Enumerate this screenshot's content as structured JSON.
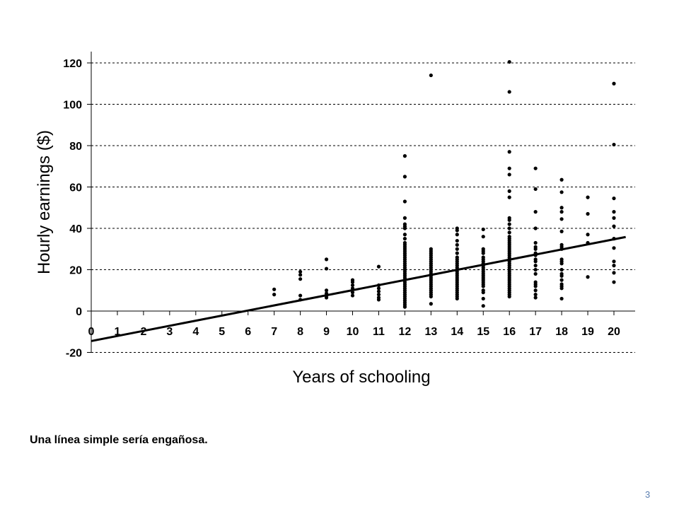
{
  "caption": "Una línea simple sería engañosa.",
  "page_number": "3",
  "chart_data": {
    "type": "scatter",
    "title": "",
    "xlabel": "Years of schooling",
    "ylabel": "Hourly earnings ($)",
    "xlim": [
      0,
      20.5
    ],
    "ylim": [
      -20,
      120
    ],
    "x_ticks": [
      0,
      1,
      2,
      3,
      4,
      5,
      6,
      7,
      8,
      9,
      10,
      11,
      12,
      13,
      14,
      15,
      16,
      17,
      18,
      19,
      20
    ],
    "y_ticks": [
      -20,
      0,
      20,
      40,
      60,
      80,
      100,
      120
    ],
    "grid": "horizontal-dashed",
    "legend": "none",
    "point_color": "#000000",
    "series": [
      {
        "points": [
          [
            7,
            8
          ],
          [
            7,
            10.5
          ],
          [
            8,
            5.5
          ],
          [
            8,
            7.5
          ],
          [
            8,
            15.5
          ],
          [
            8,
            17.5
          ],
          [
            8,
            19
          ],
          [
            9,
            6.5
          ],
          [
            9,
            7.5
          ],
          [
            9,
            8.5
          ],
          [
            9,
            10
          ],
          [
            9,
            20.5
          ],
          [
            9,
            25
          ],
          [
            10,
            7.5
          ],
          [
            10,
            9
          ],
          [
            10,
            11
          ],
          [
            10,
            12.5
          ],
          [
            10,
            14
          ],
          [
            10,
            15
          ],
          [
            11,
            5.5
          ],
          [
            11,
            6.5
          ],
          [
            11,
            8
          ],
          [
            11,
            9.5
          ],
          [
            11,
            11
          ],
          [
            11,
            12.5
          ],
          [
            11,
            21.5
          ],
          [
            12,
            2
          ],
          [
            12,
            3
          ],
          [
            12,
            4
          ],
          [
            12,
            5
          ],
          [
            12,
            6
          ],
          [
            12,
            7
          ],
          [
            12,
            8
          ],
          [
            12,
            9
          ],
          [
            12,
            10
          ],
          [
            12,
            11
          ],
          [
            12,
            12
          ],
          [
            12,
            13
          ],
          [
            12,
            14
          ],
          [
            12,
            15
          ],
          [
            12,
            16
          ],
          [
            12,
            17
          ],
          [
            12,
            18
          ],
          [
            12,
            19
          ],
          [
            12,
            20
          ],
          [
            12,
            21
          ],
          [
            12,
            22
          ],
          [
            12,
            23
          ],
          [
            12,
            24
          ],
          [
            12,
            25
          ],
          [
            12,
            26
          ],
          [
            12,
            27
          ],
          [
            12,
            28
          ],
          [
            12,
            29
          ],
          [
            12,
            30
          ],
          [
            12,
            31
          ],
          [
            12,
            32
          ],
          [
            12,
            33
          ],
          [
            12,
            35
          ],
          [
            12,
            37
          ],
          [
            12,
            40
          ],
          [
            12,
            41
          ],
          [
            12,
            42
          ],
          [
            12,
            45
          ],
          [
            12,
            53
          ],
          [
            12,
            65
          ],
          [
            12,
            75
          ],
          [
            13,
            3.5
          ],
          [
            13,
            7
          ],
          [
            13,
            8
          ],
          [
            13,
            9
          ],
          [
            13,
            10
          ],
          [
            13,
            11
          ],
          [
            13,
            12
          ],
          [
            13,
            13
          ],
          [
            13,
            14
          ],
          [
            13,
            15
          ],
          [
            13,
            16
          ],
          [
            13,
            17
          ],
          [
            13,
            18
          ],
          [
            13,
            19
          ],
          [
            13,
            20
          ],
          [
            13,
            21
          ],
          [
            13,
            22
          ],
          [
            13,
            23
          ],
          [
            13,
            24
          ],
          [
            13,
            25
          ],
          [
            13,
            26
          ],
          [
            13,
            27
          ],
          [
            13,
            28
          ],
          [
            13,
            29
          ],
          [
            13,
            30
          ],
          [
            13,
            114
          ],
          [
            14,
            6
          ],
          [
            14,
            7
          ],
          [
            14,
            8
          ],
          [
            14,
            9
          ],
          [
            14,
            10
          ],
          [
            14,
            11
          ],
          [
            14,
            12
          ],
          [
            14,
            13
          ],
          [
            14,
            14
          ],
          [
            14,
            15
          ],
          [
            14,
            16
          ],
          [
            14,
            17
          ],
          [
            14,
            18
          ],
          [
            14,
            19
          ],
          [
            14,
            20
          ],
          [
            14,
            21
          ],
          [
            14,
            22
          ],
          [
            14,
            23
          ],
          [
            14,
            24
          ],
          [
            14,
            25
          ],
          [
            14,
            26
          ],
          [
            14,
            28
          ],
          [
            14,
            30
          ],
          [
            14,
            32
          ],
          [
            14,
            34
          ],
          [
            14,
            37
          ],
          [
            14,
            39
          ],
          [
            14,
            40
          ],
          [
            15,
            2.5
          ],
          [
            15,
            6
          ],
          [
            15,
            9
          ],
          [
            15,
            10
          ],
          [
            15,
            12
          ],
          [
            15,
            13
          ],
          [
            15,
            14
          ],
          [
            15,
            15
          ],
          [
            15,
            16
          ],
          [
            15,
            17
          ],
          [
            15,
            18
          ],
          [
            15,
            19
          ],
          [
            15,
            20
          ],
          [
            15,
            21
          ],
          [
            15,
            22
          ],
          [
            15,
            23
          ],
          [
            15,
            24
          ],
          [
            15,
            25
          ],
          [
            15,
            26
          ],
          [
            15,
            28
          ],
          [
            15,
            29
          ],
          [
            15,
            30
          ],
          [
            15,
            36
          ],
          [
            15,
            39.5
          ],
          [
            16,
            7
          ],
          [
            16,
            8
          ],
          [
            16,
            9
          ],
          [
            16,
            10
          ],
          [
            16,
            11
          ],
          [
            16,
            12
          ],
          [
            16,
            13
          ],
          [
            16,
            14
          ],
          [
            16,
            15
          ],
          [
            16,
            16
          ],
          [
            16,
            17
          ],
          [
            16,
            18
          ],
          [
            16,
            19
          ],
          [
            16,
            20
          ],
          [
            16,
            21
          ],
          [
            16,
            22
          ],
          [
            16,
            23
          ],
          [
            16,
            24
          ],
          [
            16,
            25
          ],
          [
            16,
            26
          ],
          [
            16,
            27
          ],
          [
            16,
            28
          ],
          [
            16,
            29
          ],
          [
            16,
            30
          ],
          [
            16,
            31
          ],
          [
            16,
            32
          ],
          [
            16,
            33
          ],
          [
            16,
            34
          ],
          [
            16,
            35
          ],
          [
            16,
            36
          ],
          [
            16,
            38
          ],
          [
            16,
            40
          ],
          [
            16,
            42
          ],
          [
            16,
            44
          ],
          [
            16,
            45
          ],
          [
            16,
            55
          ],
          [
            16,
            58
          ],
          [
            16,
            66
          ],
          [
            16,
            69
          ],
          [
            16,
            77
          ],
          [
            16,
            106
          ],
          [
            16,
            120.5
          ],
          [
            17,
            6.5
          ],
          [
            17,
            8
          ],
          [
            17,
            10
          ],
          [
            17,
            12
          ],
          [
            17,
            13
          ],
          [
            17,
            14
          ],
          [
            17,
            18
          ],
          [
            17,
            20
          ],
          [
            17,
            22
          ],
          [
            17,
            24
          ],
          [
            17,
            25
          ],
          [
            17,
            27
          ],
          [
            17,
            28
          ],
          [
            17,
            30
          ],
          [
            17,
            31
          ],
          [
            17,
            33
          ],
          [
            17,
            40
          ],
          [
            17,
            48
          ],
          [
            17,
            59
          ],
          [
            17,
            69
          ],
          [
            18,
            6
          ],
          [
            18,
            11
          ],
          [
            18,
            12
          ],
          [
            18,
            13
          ],
          [
            18,
            15
          ],
          [
            18,
            17
          ],
          [
            18,
            18
          ],
          [
            18,
            20
          ],
          [
            18,
            23
          ],
          [
            18,
            24
          ],
          [
            18,
            25
          ],
          [
            18,
            30
          ],
          [
            18,
            31
          ],
          [
            18,
            32
          ],
          [
            18,
            38.5
          ],
          [
            18,
            44.5
          ],
          [
            18,
            48
          ],
          [
            18,
            50
          ],
          [
            18,
            57.5
          ],
          [
            18,
            63.5
          ],
          [
            19,
            16.5
          ],
          [
            19,
            33
          ],
          [
            19,
            37
          ],
          [
            19,
            47
          ],
          [
            19,
            55
          ],
          [
            20,
            14
          ],
          [
            20,
            18.5
          ],
          [
            20,
            22
          ],
          [
            20,
            24
          ],
          [
            20,
            30.5
          ],
          [
            20,
            35
          ],
          [
            20,
            41
          ],
          [
            20,
            45
          ],
          [
            20,
            48
          ],
          [
            20,
            54.5
          ],
          [
            20,
            80.5
          ],
          [
            20,
            110
          ]
        ]
      }
    ],
    "fit_line": {
      "intercept": -14.5,
      "slope": 2.46,
      "x_range": [
        0,
        20.5
      ]
    }
  }
}
